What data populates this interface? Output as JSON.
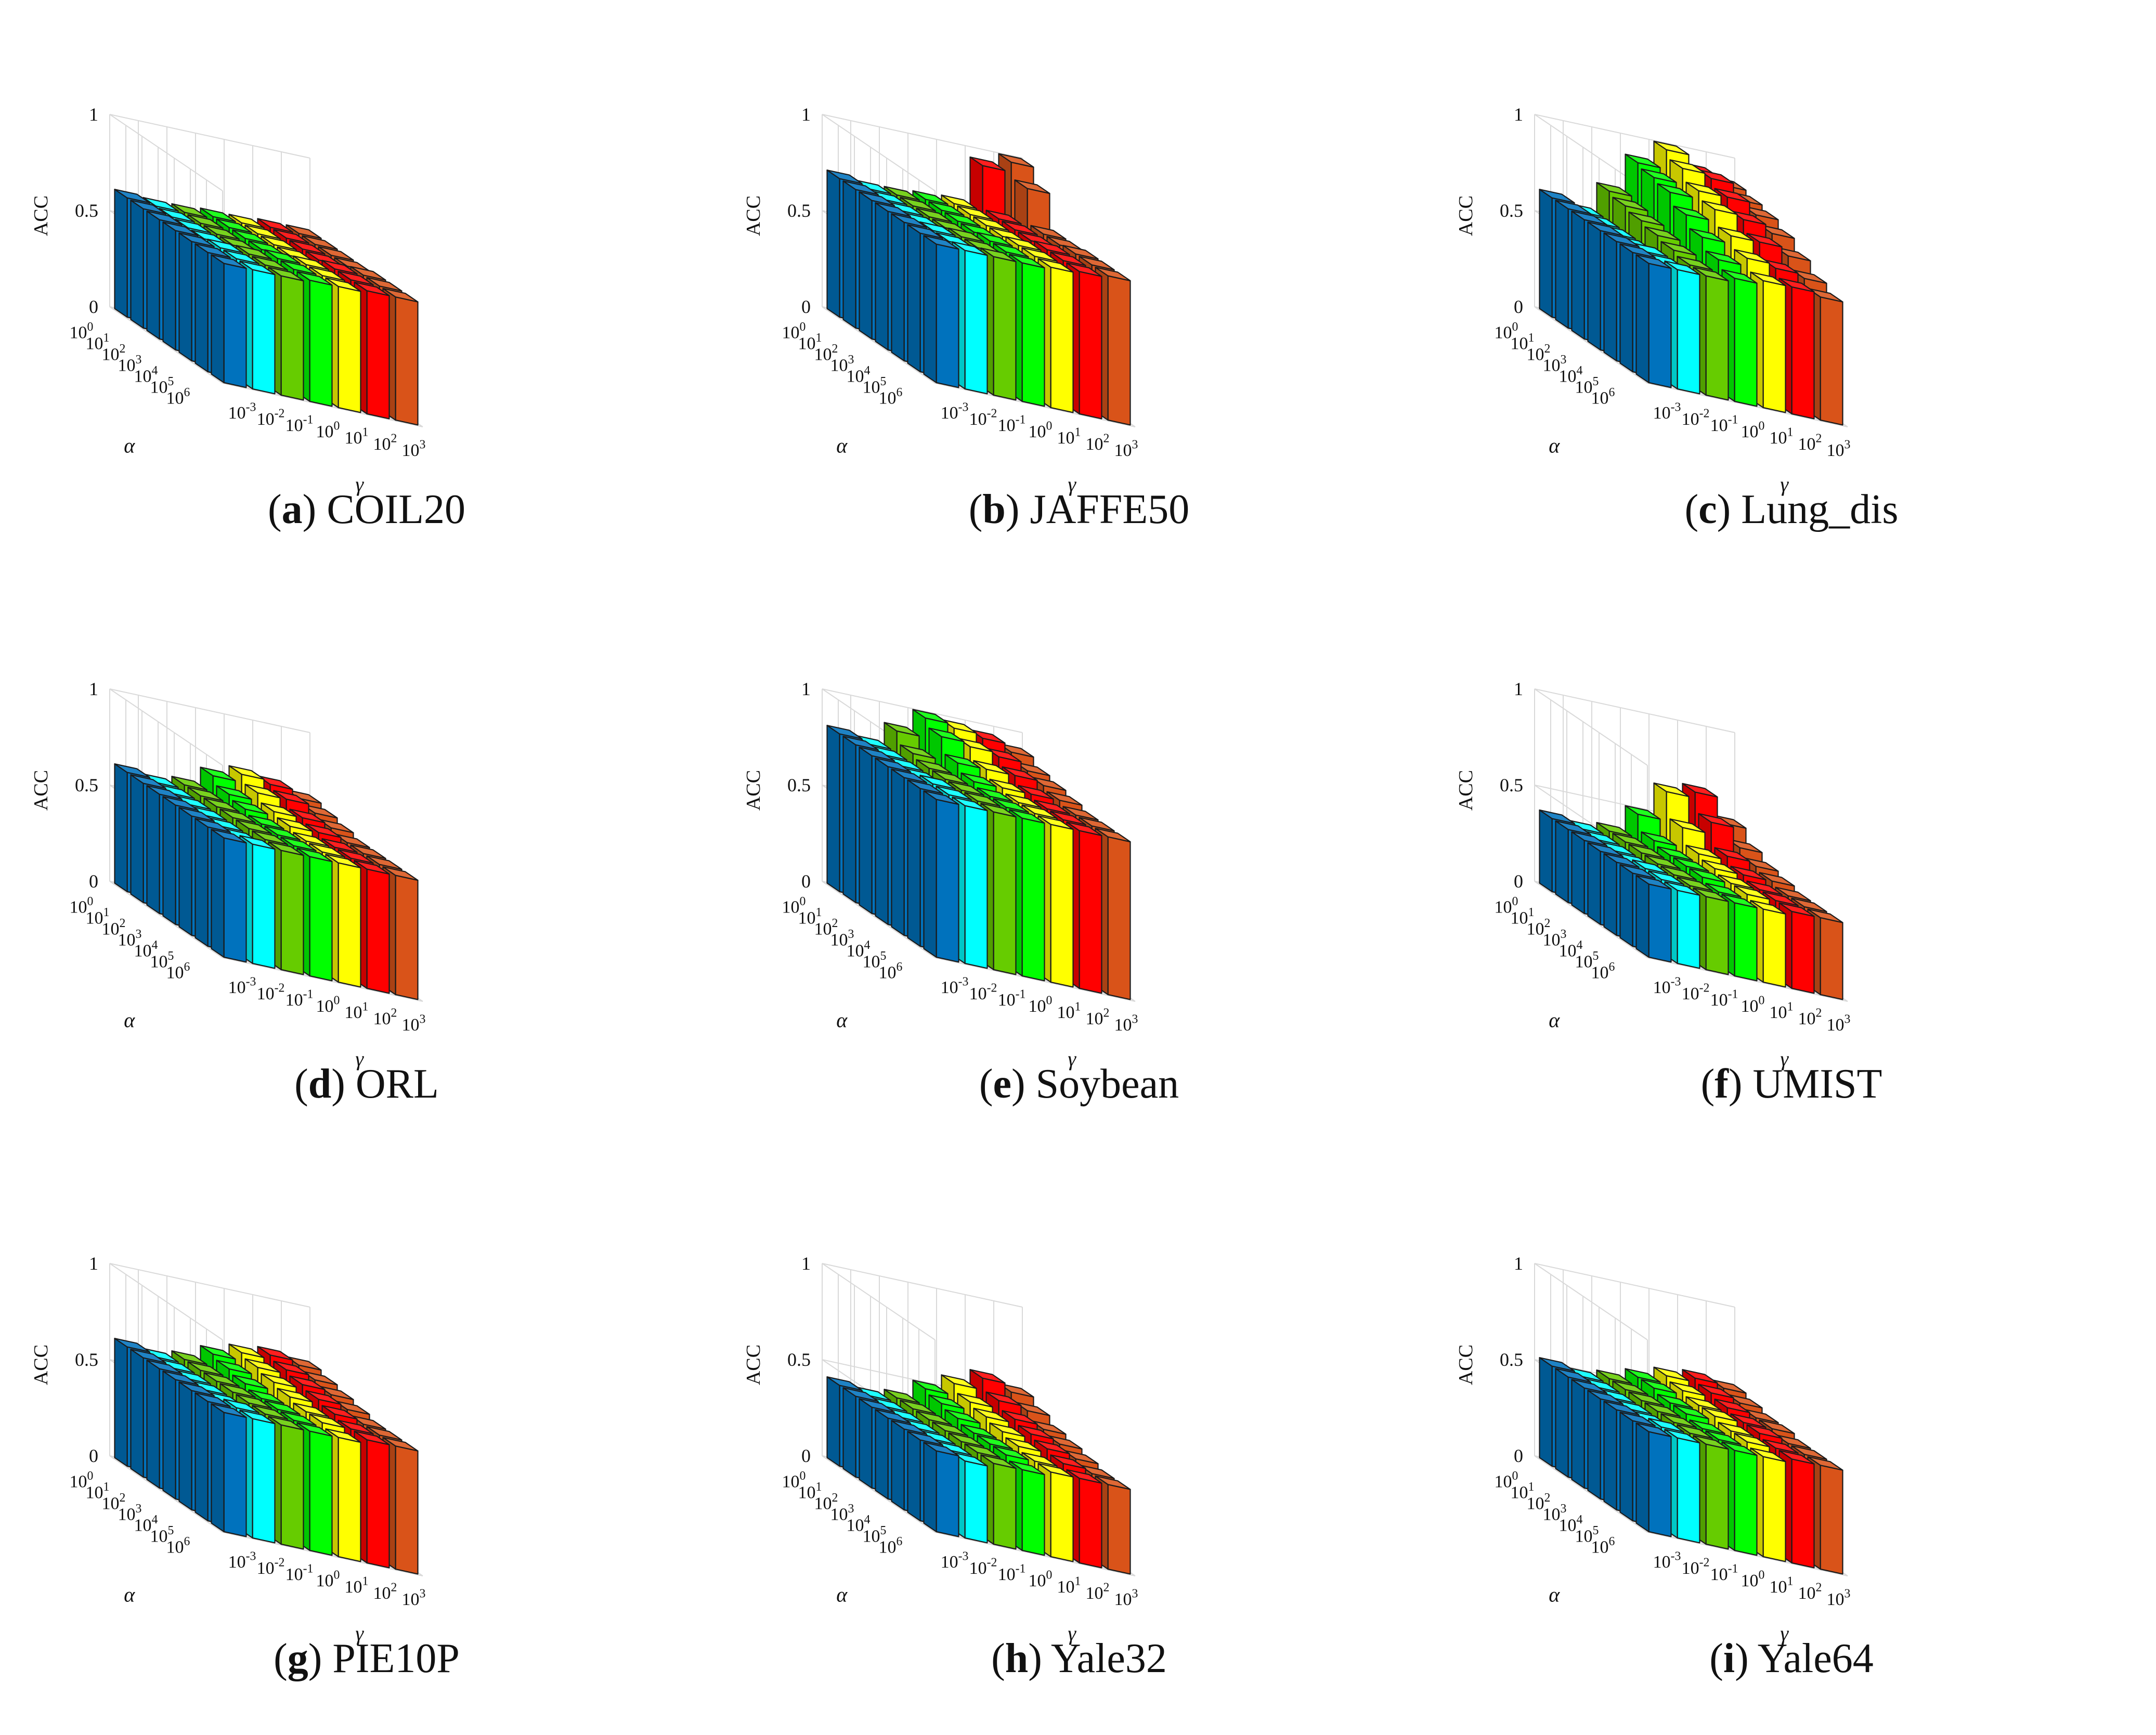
{
  "figure": {
    "z_label": "ACC",
    "alpha_label": "α",
    "gamma_label": "γ",
    "z_ticks": [
      "0",
      "0.5",
      "1"
    ],
    "alpha_ticks": [
      "0",
      "1",
      "2",
      "3",
      "4",
      "5",
      "6"
    ],
    "gamma_ticks": [
      "-3",
      "-2",
      "-1",
      "0",
      "1",
      "2",
      "3"
    ],
    "tick_base": "10"
  },
  "colors": {
    "gamma_series": [
      "#0072BD",
      "#00FFFF",
      "#66CC00",
      "#00FF00",
      "#FFFF00",
      "#FF0000",
      "#D95319"
    ],
    "front_row_first": "#0072BD"
  },
  "chart_data": [
    {
      "type": "bar3d",
      "letter": "a",
      "name": "COIL20",
      "x_axis": "γ",
      "y_axis": "α",
      "z_axis": "ACC",
      "alpha": [
        "10^0",
        "10^1",
        "10^2",
        "10^3",
        "10^4",
        "10^5",
        "10^6"
      ],
      "gamma": [
        "10^-3",
        "10^-2",
        "10^-1",
        "10^0",
        "10^1",
        "10^2",
        "10^3"
      ],
      "zlim": [
        0,
        1
      ],
      "values": [
        [
          0.62,
          0.61,
          0.61,
          0.62,
          0.62,
          0.63,
          0.63
        ],
        [
          0.62,
          0.61,
          0.61,
          0.62,
          0.62,
          0.63,
          0.63
        ],
        [
          0.62,
          0.61,
          0.61,
          0.62,
          0.62,
          0.63,
          0.63
        ],
        [
          0.62,
          0.61,
          0.61,
          0.62,
          0.62,
          0.63,
          0.63
        ],
        [
          0.62,
          0.62,
          0.62,
          0.63,
          0.63,
          0.64,
          0.64
        ],
        [
          0.62,
          0.62,
          0.62,
          0.63,
          0.63,
          0.64,
          0.64
        ],
        [
          0.62,
          0.62,
          0.62,
          0.63,
          0.63,
          0.64,
          0.64
        ]
      ]
    },
    {
      "type": "bar3d",
      "letter": "b",
      "name": "JAFFE50",
      "x_axis": "γ",
      "y_axis": "α",
      "z_axis": "ACC",
      "alpha": [
        "10^0",
        "10^1",
        "10^2",
        "10^3",
        "10^4",
        "10^5",
        "10^6"
      ],
      "gamma": [
        "10^-3",
        "10^-2",
        "10^-1",
        "10^0",
        "10^1",
        "10^2",
        "10^3"
      ],
      "zlim": [
        0,
        1
      ],
      "values": [
        [
          0.72,
          0.7,
          0.7,
          0.71,
          0.72,
          0.95,
          1.0
        ],
        [
          0.72,
          0.7,
          0.7,
          0.71,
          0.72,
          0.73,
          0.92
        ],
        [
          0.72,
          0.7,
          0.7,
          0.71,
          0.72,
          0.73,
          0.74
        ],
        [
          0.72,
          0.7,
          0.7,
          0.71,
          0.72,
          0.73,
          0.74
        ],
        [
          0.72,
          0.71,
          0.71,
          0.72,
          0.73,
          0.74,
          0.75
        ],
        [
          0.72,
          0.71,
          0.71,
          0.72,
          0.73,
          0.74,
          0.75
        ],
        [
          0.72,
          0.72,
          0.72,
          0.72,
          0.73,
          0.74,
          0.75
        ]
      ]
    },
    {
      "type": "bar3d",
      "letter": "c",
      "name": "Lung_dis",
      "x_axis": "γ",
      "y_axis": "α",
      "z_axis": "ACC",
      "alpha": [
        "10^0",
        "10^1",
        "10^2",
        "10^3",
        "10^4",
        "10^5",
        "10^6"
      ],
      "gamma": [
        "10^-3",
        "10^-2",
        "10^-1",
        "10^0",
        "10^1",
        "10^2",
        "10^3"
      ],
      "zlim": [
        0,
        1
      ],
      "values": [
        [
          0.62,
          0.58,
          0.72,
          0.9,
          1.0,
          0.92,
          0.88
        ],
        [
          0.62,
          0.58,
          0.7,
          0.88,
          0.96,
          0.94,
          0.86
        ],
        [
          0.62,
          0.58,
          0.68,
          0.86,
          0.9,
          0.9,
          0.84
        ],
        [
          0.62,
          0.58,
          0.66,
          0.8,
          0.86,
          0.84,
          0.8
        ],
        [
          0.62,
          0.6,
          0.64,
          0.74,
          0.78,
          0.78,
          0.74
        ],
        [
          0.62,
          0.6,
          0.62,
          0.68,
          0.72,
          0.7,
          0.68
        ],
        [
          0.62,
          0.62,
          0.62,
          0.64,
          0.66,
          0.66,
          0.64
        ]
      ]
    },
    {
      "type": "bar3d",
      "letter": "d",
      "name": "ORL",
      "x_axis": "γ",
      "y_axis": "α",
      "z_axis": "ACC",
      "alpha": [
        "10^0",
        "10^1",
        "10^2",
        "10^3",
        "10^4",
        "10^5",
        "10^6"
      ],
      "gamma": [
        "10^-3",
        "10^-2",
        "10^-1",
        "10^0",
        "10^1",
        "10^2",
        "10^3"
      ],
      "zlim": [
        0,
        1
      ],
      "values": [
        [
          0.62,
          0.6,
          0.62,
          0.7,
          0.74,
          0.72,
          0.68
        ],
        [
          0.62,
          0.6,
          0.62,
          0.66,
          0.7,
          0.7,
          0.66
        ],
        [
          0.62,
          0.6,
          0.62,
          0.64,
          0.66,
          0.66,
          0.64
        ],
        [
          0.62,
          0.6,
          0.62,
          0.62,
          0.64,
          0.64,
          0.62
        ],
        [
          0.62,
          0.6,
          0.62,
          0.62,
          0.62,
          0.62,
          0.62
        ],
        [
          0.62,
          0.6,
          0.62,
          0.62,
          0.62,
          0.62,
          0.62
        ],
        [
          0.62,
          0.62,
          0.62,
          0.62,
          0.62,
          0.62,
          0.62
        ]
      ]
    },
    {
      "type": "bar3d",
      "letter": "e",
      "name": "Soybean",
      "x_axis": "γ",
      "y_axis": "α",
      "z_axis": "ACC",
      "alpha": [
        "10^0",
        "10^1",
        "10^2",
        "10^3",
        "10^4",
        "10^5",
        "10^6"
      ],
      "gamma": [
        "10^-3",
        "10^-2",
        "10^-1",
        "10^0",
        "10^1",
        "10^2",
        "10^3"
      ],
      "zlim": [
        0,
        1
      ],
      "values": [
        [
          0.82,
          0.8,
          0.9,
          1.0,
          0.98,
          0.96,
          0.92
        ],
        [
          0.82,
          0.8,
          0.84,
          0.96,
          0.94,
          0.92,
          0.88
        ],
        [
          0.82,
          0.8,
          0.82,
          0.88,
          0.88,
          0.88,
          0.86
        ],
        [
          0.82,
          0.8,
          0.82,
          0.84,
          0.84,
          0.84,
          0.84
        ],
        [
          0.82,
          0.82,
          0.82,
          0.82,
          0.82,
          0.82,
          0.82
        ],
        [
          0.82,
          0.82,
          0.82,
          0.82,
          0.82,
          0.82,
          0.82
        ],
        [
          0.82,
          0.82,
          0.82,
          0.82,
          0.82,
          0.82,
          0.82
        ]
      ]
    },
    {
      "type": "bar3d",
      "letter": "f",
      "name": "UMIST",
      "x_axis": "γ",
      "y_axis": "α",
      "z_axis": "ACC",
      "alpha": [
        "10^0",
        "10^1",
        "10^2",
        "10^3",
        "10^4",
        "10^5",
        "10^6"
      ],
      "gamma": [
        "10^-3",
        "10^-2",
        "10^-1",
        "10^0",
        "10^1",
        "10^2",
        "10^3"
      ],
      "zlim": [
        0,
        1
      ],
      "values": [
        [
          0.38,
          0.36,
          0.38,
          0.5,
          0.65,
          0.68,
          0.55
        ],
        [
          0.38,
          0.36,
          0.38,
          0.42,
          0.52,
          0.58,
          0.48
        ],
        [
          0.38,
          0.36,
          0.38,
          0.4,
          0.44,
          0.46,
          0.44
        ],
        [
          0.38,
          0.36,
          0.38,
          0.4,
          0.42,
          0.42,
          0.42
        ],
        [
          0.38,
          0.38,
          0.38,
          0.4,
          0.4,
          0.4,
          0.4
        ],
        [
          0.38,
          0.38,
          0.38,
          0.38,
          0.4,
          0.4,
          0.4
        ],
        [
          0.38,
          0.38,
          0.38,
          0.38,
          0.38,
          0.4,
          0.4
        ]
      ]
    },
    {
      "type": "bar3d",
      "letter": "g",
      "name": "PIE10P",
      "x_axis": "γ",
      "y_axis": "α",
      "z_axis": "ACC",
      "alpha": [
        "10^0",
        "10^1",
        "10^2",
        "10^3",
        "10^4",
        "10^5",
        "10^6"
      ],
      "gamma": [
        "10^-3",
        "10^-2",
        "10^-1",
        "10^0",
        "10^1",
        "10^2",
        "10^3"
      ],
      "zlim": [
        0,
        1
      ],
      "values": [
        [
          0.62,
          0.6,
          0.62,
          0.68,
          0.72,
          0.74,
          0.72
        ],
        [
          0.62,
          0.6,
          0.62,
          0.66,
          0.7,
          0.72,
          0.7
        ],
        [
          0.62,
          0.6,
          0.62,
          0.64,
          0.68,
          0.7,
          0.68
        ],
        [
          0.62,
          0.6,
          0.62,
          0.62,
          0.66,
          0.68,
          0.66
        ],
        [
          0.62,
          0.6,
          0.62,
          0.62,
          0.64,
          0.66,
          0.64
        ],
        [
          0.62,
          0.62,
          0.62,
          0.62,
          0.64,
          0.64,
          0.64
        ],
        [
          0.62,
          0.62,
          0.62,
          0.62,
          0.62,
          0.64,
          0.64
        ]
      ]
    },
    {
      "type": "bar3d",
      "letter": "h",
      "name": "Yale32",
      "x_axis": "γ",
      "y_axis": "α",
      "z_axis": "ACC",
      "alpha": [
        "10^0",
        "10^1",
        "10^2",
        "10^3",
        "10^4",
        "10^5",
        "10^6"
      ],
      "gamma": [
        "10^-3",
        "10^-2",
        "10^-1",
        "10^0",
        "10^1",
        "10^2",
        "10^3"
      ],
      "zlim": [
        0,
        1
      ],
      "values": [
        [
          0.42,
          0.4,
          0.42,
          0.5,
          0.56,
          0.62,
          0.58
        ],
        [
          0.42,
          0.4,
          0.42,
          0.48,
          0.52,
          0.56,
          0.54
        ],
        [
          0.42,
          0.4,
          0.42,
          0.46,
          0.5,
          0.52,
          0.5
        ],
        [
          0.42,
          0.4,
          0.42,
          0.44,
          0.48,
          0.5,
          0.48
        ],
        [
          0.42,
          0.4,
          0.42,
          0.44,
          0.46,
          0.48,
          0.46
        ],
        [
          0.42,
          0.4,
          0.42,
          0.44,
          0.44,
          0.46,
          0.44
        ],
        [
          0.42,
          0.4,
          0.42,
          0.42,
          0.44,
          0.44,
          0.44
        ]
      ]
    },
    {
      "type": "bar3d",
      "letter": "i",
      "name": "Yale64",
      "x_axis": "γ",
      "y_axis": "α",
      "z_axis": "ACC",
      "alpha": [
        "10^0",
        "10^1",
        "10^2",
        "10^3",
        "10^4",
        "10^5",
        "10^6"
      ],
      "gamma": [
        "10^-3",
        "10^-2",
        "10^-1",
        "10^0",
        "10^1",
        "10^2",
        "10^3"
      ],
      "zlim": [
        0,
        1
      ],
      "values": [
        [
          0.52,
          0.5,
          0.52,
          0.56,
          0.6,
          0.62,
          0.6
        ],
        [
          0.52,
          0.5,
          0.52,
          0.56,
          0.58,
          0.6,
          0.58
        ],
        [
          0.52,
          0.5,
          0.52,
          0.54,
          0.56,
          0.58,
          0.56
        ],
        [
          0.52,
          0.5,
          0.52,
          0.54,
          0.56,
          0.56,
          0.56
        ],
        [
          0.52,
          0.5,
          0.52,
          0.52,
          0.54,
          0.56,
          0.54
        ],
        [
          0.52,
          0.52,
          0.52,
          0.52,
          0.54,
          0.54,
          0.54
        ],
        [
          0.52,
          0.52,
          0.52,
          0.52,
          0.52,
          0.54,
          0.54
        ]
      ]
    }
  ]
}
